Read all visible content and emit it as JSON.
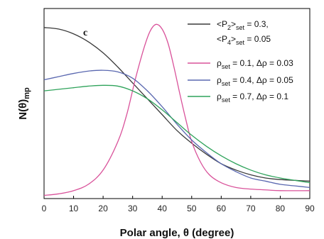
{
  "chart_data": {
    "type": "line",
    "panel_label": "c",
    "xlabel": "Polar angle, θ (degree)",
    "ylabel": "N(θ)mp",
    "xlim": [
      0,
      90
    ],
    "xticks": [
      0,
      10,
      20,
      30,
      40,
      50,
      60,
      70,
      80,
      90
    ],
    "yticks": [],
    "grid": false,
    "legend_position": "top-right",
    "series": [
      {
        "name": "<P2>set = 0.3, <P4>set = 0.05",
        "color": "#3a3a3a",
        "x": [
          0,
          5,
          10,
          15,
          20,
          25,
          30,
          35,
          40,
          45,
          50,
          55,
          60,
          65,
          70,
          75,
          80,
          85,
          90
        ],
        "y": [
          1.0,
          0.99,
          0.96,
          0.91,
          0.84,
          0.75,
          0.65,
          0.55,
          0.45,
          0.35,
          0.27,
          0.2,
          0.14,
          0.1,
          0.07,
          0.05,
          0.04,
          0.035,
          0.03
        ]
      },
      {
        "name": "ρset = 0.1, Δρ = 0.03",
        "color": "#d9529a",
        "x": [
          0,
          5,
          10,
          15,
          20,
          25,
          28,
          31,
          34,
          36,
          38,
          40,
          42,
          44,
          46,
          48,
          50,
          53,
          56,
          60,
          65,
          70,
          75,
          80,
          90
        ],
        "y": [
          -0.06,
          -0.05,
          -0.03,
          0.01,
          0.1,
          0.28,
          0.45,
          0.68,
          0.88,
          0.98,
          1.02,
          0.99,
          0.9,
          0.75,
          0.58,
          0.42,
          0.28,
          0.15,
          0.07,
          0.02,
          -0.01,
          -0.02,
          -0.025,
          -0.03,
          -0.03
        ]
      },
      {
        "name": "ρset = 0.4, Δρ = 0.05",
        "color": "#5a68b0",
        "x": [
          0,
          5,
          10,
          15,
          20,
          25,
          30,
          35,
          40,
          45,
          50,
          55,
          60,
          65,
          70,
          75,
          80,
          85,
          90
        ],
        "y": [
          0.67,
          0.69,
          0.71,
          0.725,
          0.73,
          0.72,
          0.68,
          0.6,
          0.5,
          0.39,
          0.29,
          0.21,
          0.14,
          0.09,
          0.05,
          0.03,
          0.01,
          0.0,
          -0.01
        ]
      },
      {
        "name": "ρset = 0.7, Δρ = 0.1",
        "color": "#2fa35b",
        "x": [
          0,
          5,
          10,
          15,
          20,
          25,
          30,
          35,
          40,
          45,
          50,
          55,
          60,
          65,
          70,
          75,
          80,
          85,
          90
        ],
        "y": [
          0.6,
          0.61,
          0.62,
          0.63,
          0.635,
          0.63,
          0.6,
          0.55,
          0.48,
          0.4,
          0.32,
          0.25,
          0.19,
          0.14,
          0.1,
          0.07,
          0.05,
          0.035,
          0.02
        ]
      }
    ]
  },
  "legend": {
    "items": [
      {
        "lines": [
          [
            [
              "<P",
              ""
            ],
            [
              "2",
              "sub"
            ],
            [
              ">",
              ""
            ],
            [
              "set",
              "sub"
            ],
            [
              " = 0.3,",
              ""
            ]
          ],
          [
            [
              "<P",
              ""
            ],
            [
              "4",
              "sub"
            ],
            [
              ">",
              ""
            ],
            [
              "set",
              "sub"
            ],
            [
              " = 0.05",
              ""
            ]
          ]
        ]
      },
      {
        "lines": [
          [
            [
              "ρ",
              ""
            ],
            [
              "set",
              "sub"
            ],
            [
              " = 0.1, Δρ = 0.03",
              ""
            ]
          ]
        ]
      },
      {
        "lines": [
          [
            [
              "ρ",
              ""
            ],
            [
              "set",
              "sub"
            ],
            [
              " = 0.4, Δρ = 0.05",
              ""
            ]
          ]
        ]
      },
      {
        "lines": [
          [
            [
              "ρ",
              ""
            ],
            [
              "set",
              "sub"
            ],
            [
              " = 0.7, Δρ = 0.1",
              ""
            ]
          ]
        ]
      }
    ]
  },
  "ylabel_parts": {
    "main": "N(θ)",
    "sub": "mp"
  }
}
